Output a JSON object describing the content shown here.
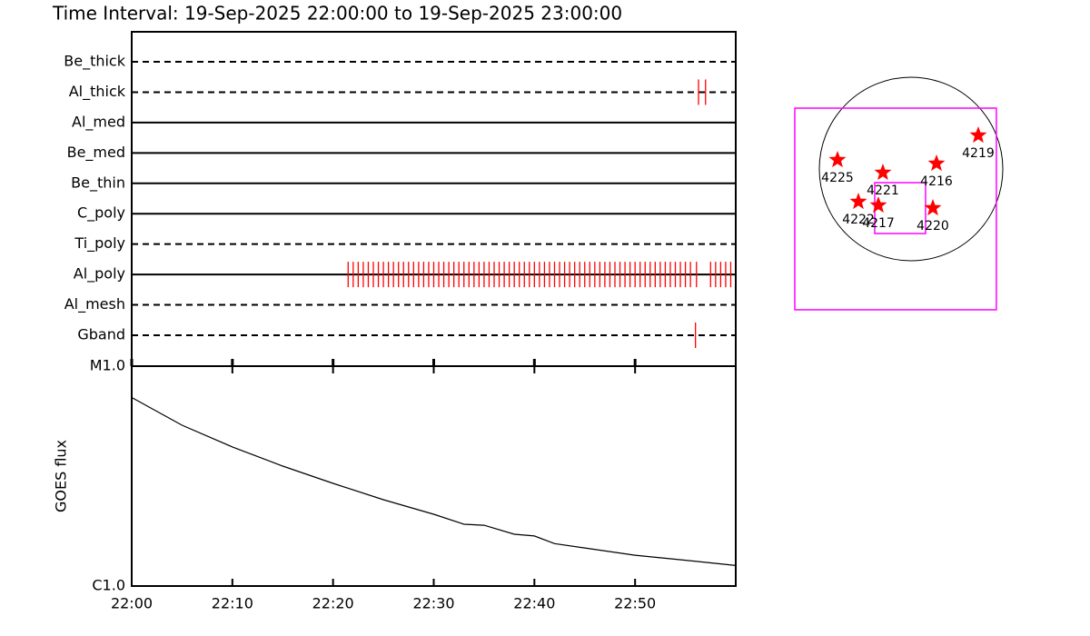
{
  "chart_data": [
    {
      "type": "timeline",
      "title": "Time Interval: 19-Sep-2025 22:00:00 to 19-Sep-2025 23:00:00",
      "xlim": [
        0,
        60
      ],
      "xticks": [
        0,
        10,
        20,
        30,
        40,
        50
      ],
      "series": [
        {
          "name": "Be_thick",
          "style": "dashed",
          "color": "#ff0000",
          "values": []
        },
        {
          "name": "Al_thick",
          "style": "dashed",
          "color": "#ff0000",
          "values": [
            56.3,
            57.0
          ]
        },
        {
          "name": "Al_med",
          "style": "solid",
          "color": "#ff0000",
          "values": []
        },
        {
          "name": "Be_med",
          "style": "solid",
          "color": "#ff0000",
          "values": []
        },
        {
          "name": "Be_thin",
          "style": "solid",
          "color": "#ff0000",
          "values": []
        },
        {
          "name": "C_poly",
          "style": "solid",
          "color": "#ff0000",
          "values": []
        },
        {
          "name": "Ti_poly",
          "style": "dashed",
          "color": "#ff0000",
          "values": []
        },
        {
          "name": "Al_poly",
          "style": "solid",
          "color": "#ff0000",
          "values": [
            21.5,
            22.0,
            22.5,
            23.0,
            23.5,
            24.0,
            24.5,
            25.0,
            25.5,
            26.0,
            26.5,
            27.0,
            27.5,
            28.0,
            28.5,
            29.0,
            29.5,
            30.0,
            30.5,
            31.0,
            31.5,
            32.0,
            32.5,
            33.0,
            33.5,
            34.0,
            34.5,
            35.0,
            35.5,
            36.0,
            36.5,
            37.0,
            37.5,
            38.0,
            38.5,
            39.0,
            39.5,
            40.0,
            40.5,
            41.0,
            41.5,
            42.0,
            42.5,
            43.0,
            43.5,
            44.0,
            44.5,
            45.0,
            45.5,
            46.0,
            46.5,
            47.0,
            47.5,
            48.0,
            48.5,
            49.0,
            49.5,
            50.0,
            50.5,
            51.0,
            51.5,
            52.0,
            52.5,
            53.0,
            53.5,
            54.0,
            54.5,
            55.0,
            55.5,
            56.1,
            57.5,
            58.0,
            58.5,
            59.0,
            59.5
          ]
        },
        {
          "name": "Al_mesh",
          "style": "dashed",
          "color": "#ff0000",
          "values": []
        },
        {
          "name": "Gband",
          "style": "dashed",
          "color": "#ff0000",
          "values": [
            56.0
          ]
        }
      ]
    },
    {
      "type": "line",
      "ylabel": "GOES flux",
      "log_scale": true,
      "color": "#000000",
      "xlim": [
        0,
        60
      ],
      "xticks": [
        {
          "value": 0,
          "label": "22:00"
        },
        {
          "value": 10,
          "label": "22:10"
        },
        {
          "value": 20,
          "label": "22:20"
        },
        {
          "value": 30,
          "label": "22:30"
        },
        {
          "value": 40,
          "label": "22:40"
        },
        {
          "value": 50,
          "label": "22:50"
        }
      ],
      "ylim": [
        1e-06,
        1e-05
      ],
      "yticks": [
        {
          "value": 1e-06,
          "label": "C1.0"
        },
        {
          "value": 1e-05,
          "label": "M1.0"
        }
      ],
      "x": [
        0,
        5,
        10,
        15,
        20,
        25,
        30,
        33,
        35,
        38,
        40,
        42,
        45,
        50,
        55,
        60
      ],
      "values": [
        7.2e-06,
        5.39e-06,
        4.29e-06,
        3.51e-06,
        2.93e-06,
        2.47e-06,
        2.12e-06,
        1.91e-06,
        1.89e-06,
        1.72e-06,
        1.69e-06,
        1.56e-06,
        1.49e-06,
        1.38e-06,
        1.31e-06,
        1.24e-06
      ]
    },
    {
      "type": "map",
      "xlim": [
        -1150,
        1150
      ],
      "ylim": [
        -1150,
        1150
      ],
      "disk_radius": 960,
      "box_color": "#ff00ff",
      "point_color": "#ff0000",
      "boxes": [
        {
          "center": [
            -162,
            -418
          ],
          "size": 2109
        },
        {
          "center": [
            -114,
            -409
          ],
          "size": 532
        }
      ],
      "points": {
        "labels": [
          "4225",
          "4221",
          "4216",
          "4219",
          "4222",
          "4217",
          "4220"
        ],
        "x": [
          -770,
          -295,
          266,
          703,
          -551,
          -342,
          228
        ],
        "y": [
          95,
          -38,
          57,
          352,
          -342,
          -380,
          -409
        ]
      }
    }
  ]
}
